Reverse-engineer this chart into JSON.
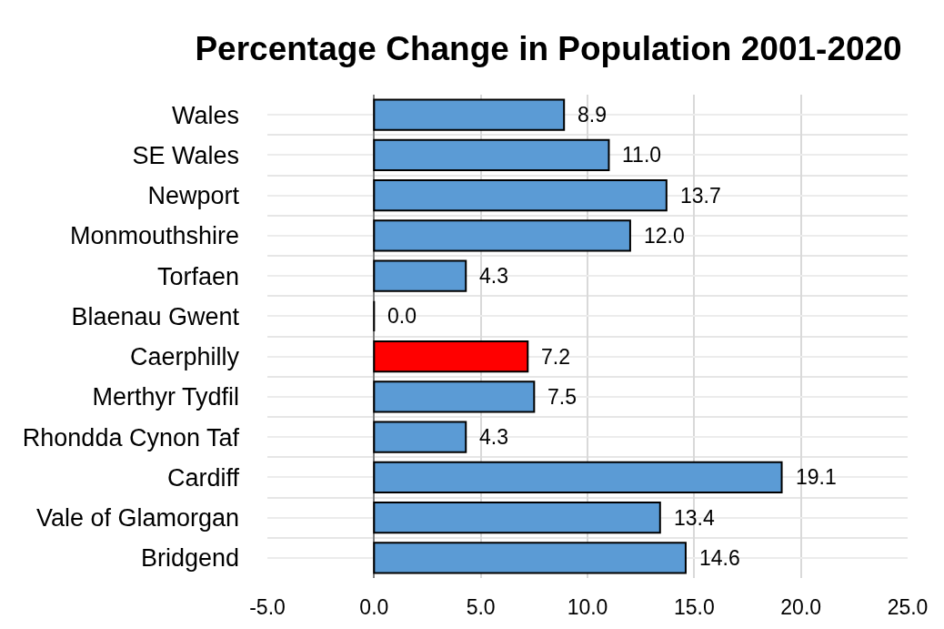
{
  "chart_data": {
    "type": "bar",
    "orientation": "horizontal",
    "title": "Percentage Change in Population 2001-2020",
    "categories": [
      "Wales",
      "SE Wales",
      "Newport",
      "Monmouthshire",
      "Torfaen",
      "Blaenau Gwent",
      "Caerphilly",
      "Merthyr Tydfil",
      "Rhondda Cynon Taf",
      "Cardiff",
      "Vale of Glamorgan",
      "Bridgend"
    ],
    "values": [
      8.9,
      11.0,
      13.7,
      12.0,
      4.3,
      0.0,
      7.2,
      7.5,
      4.3,
      19.1,
      13.4,
      14.6
    ],
    "value_labels": [
      "8.9",
      "11.0",
      "13.7",
      "12.0",
      "4.3",
      "0.0",
      "7.2",
      "7.5",
      "4.3",
      "19.1",
      "13.4",
      "14.6"
    ],
    "colors": [
      "#5b9bd5",
      "#5b9bd5",
      "#5b9bd5",
      "#5b9bd5",
      "#5b9bd5",
      "#000000",
      "#ff0000",
      "#5b9bd5",
      "#5b9bd5",
      "#5b9bd5",
      "#5b9bd5",
      "#5b9bd5"
    ],
    "xlim": [
      -5,
      25
    ],
    "xticks": [
      {
        "value": -5,
        "label": "-5.0"
      },
      {
        "value": 0,
        "label": "0.0"
      },
      {
        "value": 5,
        "label": "5.0"
      },
      {
        "value": 10,
        "label": "10.0"
      },
      {
        "value": 15,
        "label": "15.0"
      },
      {
        "value": 20,
        "label": "20.0"
      },
      {
        "value": 25,
        "label": "25.0"
      }
    ],
    "grid": true
  }
}
